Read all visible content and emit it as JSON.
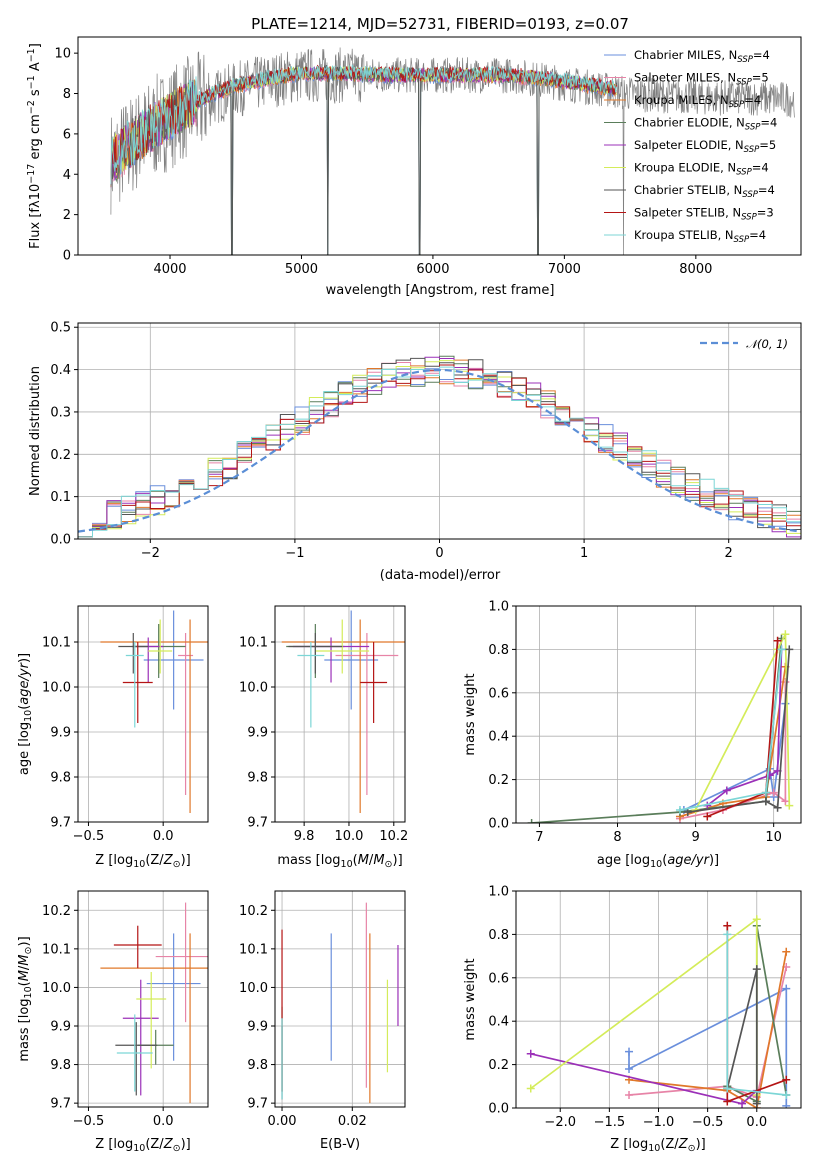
{
  "colors": {
    "Chabrier MILES": "#6a8fdc",
    "Salpeter MILES": "#e784a7",
    "Kroupa MILES": "#e0782a",
    "Chabrier ELODIE": "#5a7d5a",
    "Salpeter ELODIE": "#9b30b8",
    "Kroupa ELODIE": "#d4ec5a",
    "Chabrier STELIB": "#555555",
    "Salpeter STELIB": "#b41515",
    "Kroupa STELIB": "#7cd6d6",
    "observed": "#808080",
    "gaussian": "#5b8ed6"
  },
  "chart_data": [
    {
      "id": "spectrum",
      "type": "line",
      "title": "PLATE=1214, MJD=52731, FIBERID=0193, z=0.07",
      "xlabel": "wavelength [Angstrom, rest frame]",
      "ylabel": "Flux [fλ10⁻¹⁷ erg cm⁻² s⁻¹ A⁻¹]",
      "xlim": [
        3300,
        8800
      ],
      "ylim": [
        0,
        10.8
      ],
      "xticks": [
        "4000",
        "5000",
        "6000",
        "7000",
        "8000"
      ],
      "yticks": [
        "0",
        "2",
        "4",
        "6",
        "8",
        "10"
      ],
      "grid": false,
      "legend_position": "right",
      "legend": [
        {
          "name": "Chabrier MILES",
          "nssp": "4"
        },
        {
          "name": "Salpeter MILES",
          "nssp": "5"
        },
        {
          "name": "Kroupa MILES",
          "nssp": "4"
        },
        {
          "name": "Chabrier ELODIE",
          "nssp": "4"
        },
        {
          "name": "Salpeter ELODIE",
          "nssp": "5"
        },
        {
          "name": "Kroupa ELODIE",
          "nssp": "4"
        },
        {
          "name": "Chabrier STELIB",
          "nssp": "4"
        },
        {
          "name": "Salpeter STELIB",
          "nssp": "3"
        },
        {
          "name": "Kroupa STELIB",
          "nssp": "4"
        }
      ],
      "observed_continuum": {
        "x": [
          3550,
          3700,
          3900,
          4100,
          4300,
          4500,
          4800,
          5000,
          5200,
          5500,
          5800,
          6000,
          6300,
          6600,
          6900,
          7200,
          7500,
          7800,
          8100,
          8400,
          8750
        ],
        "y": [
          4.6,
          5.4,
          6.4,
          7.2,
          7.7,
          8.2,
          8.7,
          8.9,
          8.9,
          8.9,
          8.9,
          8.9,
          8.9,
          8.9,
          8.6,
          8.3,
          8.0,
          7.9,
          7.8,
          7.8,
          7.7
        ]
      },
      "model_continuum": {
        "x": [
          3550,
          3700,
          3900,
          4100,
          4300,
          4500,
          4800,
          5000,
          5200,
          5500,
          5800,
          6000,
          6300,
          6600,
          6900,
          7200,
          7400
        ],
        "y": [
          4.6,
          5.5,
          6.5,
          7.3,
          7.9,
          8.4,
          8.8,
          9.0,
          9.0,
          8.95,
          8.9,
          8.9,
          8.9,
          8.9,
          8.7,
          8.4,
          8.2
        ]
      },
      "masked_regions": [
        4470,
        5200,
        5900,
        6800,
        7450
      ]
    },
    {
      "id": "residuals",
      "type": "histogram",
      "xlabel": "(data-model)/error",
      "ylabel": "Normed distribution",
      "xlim": [
        -2.5,
        2.5
      ],
      "ylim": [
        0,
        0.51
      ],
      "xticks": [
        "−2",
        "−1",
        "0",
        "1",
        "2"
      ],
      "yticks": [
        "0.0",
        "0.1",
        "0.2",
        "0.3",
        "0.4",
        "0.5"
      ],
      "grid": true,
      "legend_position": "top-right",
      "legend": [
        {
          "name": "𝒩(0, 1)"
        }
      ],
      "bin_width": 0.1,
      "bin_start": -2.5,
      "reference_gaussian": {
        "x": [
          -2.5,
          -2.0,
          -1.5,
          -1.0,
          -0.5,
          0.0,
          0.5,
          1.0,
          1.5,
          2.0,
          2.5
        ],
        "y": [
          0.018,
          0.054,
          0.13,
          0.242,
          0.352,
          0.399,
          0.352,
          0.242,
          0.13,
          0.054,
          0.018
        ]
      }
    },
    {
      "id": "age_vs_Z",
      "type": "errorbar",
      "xlabel": "Z [log₁₀(Z/Z⊙)]",
      "ylabel": "age  [log₁₀(age/yr)]",
      "xlim": [
        -0.57,
        0.3
      ],
      "ylim": [
        9.7,
        10.18
      ],
      "xticks": [
        "−0.5",
        "0.0"
      ],
      "yticks": [
        "9.7",
        "9.8",
        "9.9",
        "10.0",
        "10.1"
      ],
      "grid": true,
      "points": [
        {
          "series": "Chabrier MILES",
          "x": 0.07,
          "y": 10.06,
          "xerr": 0.2,
          "yerr": [
            0.11,
            0.11
          ]
        },
        {
          "series": "Salpeter MILES",
          "x": 0.15,
          "y": 10.07,
          "xerr": 0.05,
          "yerr": [
            0.31,
            0.05
          ]
        },
        {
          "series": "Kroupa MILES",
          "x": 0.18,
          "y": 10.1,
          "xerr": 0.6,
          "yerr": [
            0.38,
            0.05
          ]
        },
        {
          "series": "Chabrier ELODIE",
          "x": -0.03,
          "y": 10.09,
          "xerr": 0.18,
          "yerr": [
            0.07,
            0.05
          ]
        },
        {
          "series": "Salpeter ELODIE",
          "x": -0.1,
          "y": 10.09,
          "xerr": 0.1,
          "yerr": [
            0.08,
            0.02
          ]
        },
        {
          "series": "Kroupa ELODIE",
          "x": -0.02,
          "y": 10.08,
          "xerr": 0.08,
          "yerr": [
            0.05,
            0.07
          ]
        },
        {
          "series": "Chabrier STELIB",
          "x": -0.2,
          "y": 10.09,
          "xerr": 0.1,
          "yerr": [
            0.06,
            0.03
          ]
        },
        {
          "series": "Salpeter STELIB",
          "x": -0.17,
          "y": 10.01,
          "xerr": 0.1,
          "yerr": [
            0.09,
            0.09
          ]
        },
        {
          "series": "Kroupa STELIB",
          "x": -0.19,
          "y": 10.07,
          "xerr": 0.06,
          "yerr": [
            0.16,
            0.03
          ]
        }
      ]
    },
    {
      "id": "age_vs_mass",
      "type": "errorbar",
      "xlabel": "mass [log₁₀(M/M⊙)]",
      "ylabel": "",
      "xlim": [
        9.67,
        10.25
      ],
      "ylim": [
        9.7,
        10.18
      ],
      "xticks": [
        "9.8",
        "10.0",
        "10.2"
      ],
      "yticks": [
        "9.7",
        "9.8",
        "9.9",
        "10.0",
        "10.1"
      ],
      "grid": true,
      "points": [
        {
          "series": "Chabrier MILES",
          "x": 10.01,
          "y": 10.06,
          "xerr": 0.12,
          "yerr": [
            0.11,
            0.11
          ]
        },
        {
          "series": "Salpeter MILES",
          "x": 10.08,
          "y": 10.07,
          "xerr": 0.14,
          "yerr": [
            0.31,
            0.05
          ]
        },
        {
          "series": "Kroupa MILES",
          "x": 10.05,
          "y": 10.1,
          "xerr": 0.35,
          "yerr": [
            0.38,
            0.05
          ]
        },
        {
          "series": "Chabrier ELODIE",
          "x": 9.85,
          "y": 10.09,
          "xerr": 0.13,
          "yerr": [
            0.07,
            0.05
          ]
        },
        {
          "series": "Salpeter ELODIE",
          "x": 9.92,
          "y": 10.09,
          "xerr": 0.17,
          "yerr": [
            0.08,
            0.02
          ]
        },
        {
          "series": "Kroupa ELODIE",
          "x": 9.97,
          "y": 10.08,
          "xerr": 0.12,
          "yerr": [
            0.05,
            0.07
          ]
        },
        {
          "series": "Chabrier STELIB",
          "x": 9.85,
          "y": 10.09,
          "xerr": 0.12,
          "yerr": [
            0.06,
            0.03
          ]
        },
        {
          "series": "Salpeter STELIB",
          "x": 10.11,
          "y": 10.01,
          "xerr": 0.06,
          "yerr": [
            0.09,
            0.09
          ]
        },
        {
          "series": "Kroupa STELIB",
          "x": 9.83,
          "y": 10.07,
          "xerr": 0.06,
          "yerr": [
            0.16,
            0.03
          ]
        }
      ]
    },
    {
      "id": "mass_weight_vs_age",
      "type": "line",
      "xlabel": "age  [log₁₀(age/yr)]",
      "ylabel": "mass weight",
      "xlim": [
        6.7,
        10.35
      ],
      "ylim": [
        0,
        1.0
      ],
      "xticks": [
        "7",
        "8",
        "9",
        "10"
      ],
      "yticks": [
        "0.0",
        "0.2",
        "0.4",
        "0.6",
        "0.8",
        "1.0"
      ],
      "grid": true,
      "series": [
        {
          "name": "Chabrier MILES",
          "x": [
            8.85,
            9.95,
            10.0,
            10.15
          ],
          "y": [
            0.06,
            0.25,
            0.12,
            0.55
          ]
        },
        {
          "name": "Salpeter MILES",
          "x": [
            8.8,
            9.35,
            10.0,
            10.15,
            10.15
          ],
          "y": [
            0.02,
            0.06,
            0.14,
            0.1,
            0.65
          ]
        },
        {
          "name": "Kroupa MILES",
          "x": [
            8.8,
            9.35,
            9.9,
            10.15
          ],
          "y": [
            0.03,
            0.09,
            0.12,
            0.72
          ]
        },
        {
          "name": "Chabrier ELODIE",
          "x": [
            6.9,
            8.8,
            9.9,
            10.1
          ],
          "y": [
            0.0,
            0.05,
            0.1,
            0.85
          ]
        },
        {
          "name": "Salpeter ELODIE",
          "x": [
            9.15,
            9.4,
            9.95,
            10.05,
            10.1
          ],
          "y": [
            0.08,
            0.15,
            0.22,
            0.24,
            0.8
          ]
        },
        {
          "name": "Kroupa ELODIE",
          "x": [
            9.0,
            10.05,
            10.15,
            10.2
          ],
          "y": [
            0.06,
            0.8,
            0.87,
            0.08
          ]
        },
        {
          "name": "Chabrier STELIB",
          "x": [
            8.9,
            9.9,
            10.05,
            10.2
          ],
          "y": [
            0.05,
            0.1,
            0.07,
            0.8
          ]
        },
        {
          "name": "Salpeter STELIB",
          "x": [
            9.15,
            9.9,
            10.05
          ],
          "y": [
            0.03,
            0.14,
            0.84
          ]
        },
        {
          "name": "Kroupa STELIB",
          "x": [
            8.8,
            9.9,
            10.1
          ],
          "y": [
            0.06,
            0.14,
            0.8
          ]
        }
      ]
    },
    {
      "id": "mass_vs_Z",
      "type": "errorbar",
      "xlabel": "Z [log₁₀(Z/Z⊙)]",
      "ylabel": "mass [log₁₀(M/M⊙)]",
      "xlim": [
        -0.57,
        0.3
      ],
      "ylim": [
        9.69,
        10.25
      ],
      "xticks": [
        "−0.5",
        "0.0"
      ],
      "yticks": [
        "9.7",
        "9.8",
        "9.9",
        "10.0",
        "10.1",
        "10.2"
      ],
      "grid": true,
      "points": [
        {
          "series": "Chabrier MILES",
          "x": 0.07,
          "y": 10.01,
          "xerr": 0.18,
          "yerr": [
            0.2,
            0.13
          ]
        },
        {
          "series": "Salpeter MILES",
          "x": 0.15,
          "y": 10.08,
          "xerr": 0.2,
          "yerr": [
            0.17,
            0.14
          ]
        },
        {
          "series": "Kroupa MILES",
          "x": 0.18,
          "y": 10.05,
          "xerr": 0.6,
          "yerr": [
            0.35,
            0.09
          ]
        },
        {
          "series": "Chabrier ELODIE",
          "x": -0.05,
          "y": 9.85,
          "xerr": 0.12,
          "yerr": [
            0.05,
            0.04
          ]
        },
        {
          "series": "Salpeter ELODIE",
          "x": -0.15,
          "y": 9.92,
          "xerr": 0.12,
          "yerr": [
            0.2,
            0.1
          ]
        },
        {
          "series": "Kroupa ELODIE",
          "x": -0.08,
          "y": 9.97,
          "xerr": 0.1,
          "yerr": [
            0.18,
            0.07
          ]
        },
        {
          "series": "Chabrier STELIB",
          "x": -0.18,
          "y": 9.85,
          "xerr": 0.14,
          "yerr": [
            0.13,
            0.06
          ]
        },
        {
          "series": "Salpeter STELIB",
          "x": -0.17,
          "y": 10.11,
          "xerr": 0.16,
          "yerr": [
            0.06,
            0.05
          ]
        },
        {
          "series": "Kroupa STELIB",
          "x": -0.19,
          "y": 9.83,
          "xerr": 0.12,
          "yerr": [
            0.1,
            0.1
          ]
        }
      ]
    },
    {
      "id": "mass_vs_EBV",
      "type": "errorbar",
      "xlabel": "E(B-V)",
      "ylabel": "",
      "xlim": [
        -0.002,
        0.035
      ],
      "ylim": [
        9.69,
        10.25
      ],
      "xticks": [
        "0.00",
        "0.02"
      ],
      "yticks": [
        "9.7",
        "9.8",
        "9.9",
        "10.0",
        "10.1",
        "10.2"
      ],
      "grid": true,
      "points": [
        {
          "series": "Chabrier MILES",
          "x": 0.014,
          "y": 9.98,
          "xerr": 0.0,
          "yerr": [
            0.17,
            0.16
          ]
        },
        {
          "series": "Salpeter MILES",
          "x": 0.024,
          "y": 10.0,
          "xerr": 0.0,
          "yerr": [
            0.26,
            0.22
          ]
        },
        {
          "series": "Kroupa MILES",
          "x": 0.025,
          "y": 9.92,
          "xerr": 0.0,
          "yerr": [
            0.22,
            0.22
          ]
        },
        {
          "series": "Chabrier ELODIE",
          "x": 0.0,
          "y": 9.85,
          "xerr": 0.0,
          "yerr": [
            0.12,
            0.1
          ]
        },
        {
          "series": "Salpeter ELODIE",
          "x": 0.033,
          "y": 10.0,
          "xerr": 0.0,
          "yerr": [
            0.1,
            0.11
          ]
        },
        {
          "series": "Kroupa ELODIE",
          "x": 0.03,
          "y": 9.9,
          "xerr": 0.0,
          "yerr": [
            0.12,
            0.12
          ]
        },
        {
          "series": "Chabrier STELIB",
          "x": 0.0,
          "y": 9.85,
          "xerr": 0.0,
          "yerr": [
            0.14,
            0.05
          ]
        },
        {
          "series": "Salpeter STELIB",
          "x": 0.0,
          "y": 9.93,
          "xerr": 0.0,
          "yerr": [
            0.2,
            0.22
          ]
        },
        {
          "series": "Kroupa STELIB",
          "x": 0.0,
          "y": 9.83,
          "xerr": 0.0,
          "yerr": [
            0.12,
            0.09
          ]
        }
      ]
    },
    {
      "id": "mass_weight_vs_Z",
      "type": "line",
      "xlabel": "Z [log₁₀(Z/Z⊙)]",
      "ylabel": "mass weight",
      "xlim": [
        -2.45,
        0.45
      ],
      "ylim": [
        0,
        1.0
      ],
      "xticks": [
        "−2.0",
        "−1.5",
        "−1.0",
        "−0.5",
        "0.0"
      ],
      "yticks": [
        "0.0",
        "0.2",
        "0.4",
        "0.6",
        "0.8",
        "1.0"
      ],
      "grid": true,
      "series": [
        {
          "name": "Chabrier MILES",
          "x": [
            -1.3,
            -1.3,
            0.3,
            0.3
          ],
          "y": [
            0.26,
            0.18,
            0.55,
            0.01
          ]
        },
        {
          "name": "Salpeter MILES",
          "x": [
            -1.3,
            -0.3,
            0.0,
            0.3
          ],
          "y": [
            0.06,
            0.1,
            0.05,
            0.65
          ]
        },
        {
          "name": "Kroupa MILES",
          "x": [
            -1.3,
            -0.3,
            0.0,
            0.3
          ],
          "y": [
            0.13,
            0.08,
            0.0,
            0.72
          ]
        },
        {
          "name": "Chabrier ELODIE",
          "x": [
            -0.3,
            0.0,
            0.0,
            0.3
          ],
          "y": [
            0.1,
            0.03,
            0.84,
            0.06
          ]
        },
        {
          "name": "Salpeter ELODIE",
          "x": [
            -2.3,
            -0.15,
            0.0
          ],
          "y": [
            0.25,
            0.02,
            0.08
          ]
        },
        {
          "name": "Kroupa ELODIE",
          "x": [
            -2.3,
            0.0,
            0.0
          ],
          "y": [
            0.09,
            0.87,
            0.06
          ]
        },
        {
          "name": "Chabrier STELIB",
          "x": [
            -0.3,
            0.0,
            0.0
          ],
          "y": [
            0.09,
            0.64,
            0.02
          ]
        },
        {
          "name": "Salpeter STELIB",
          "x": [
            -0.3,
            -0.3,
            0.3
          ],
          "y": [
            0.84,
            0.03,
            0.13
          ]
        },
        {
          "name": "Kroupa STELIB",
          "x": [
            -0.3,
            -0.3,
            0.3
          ],
          "y": [
            0.8,
            0.09,
            0.06
          ]
        }
      ]
    }
  ]
}
